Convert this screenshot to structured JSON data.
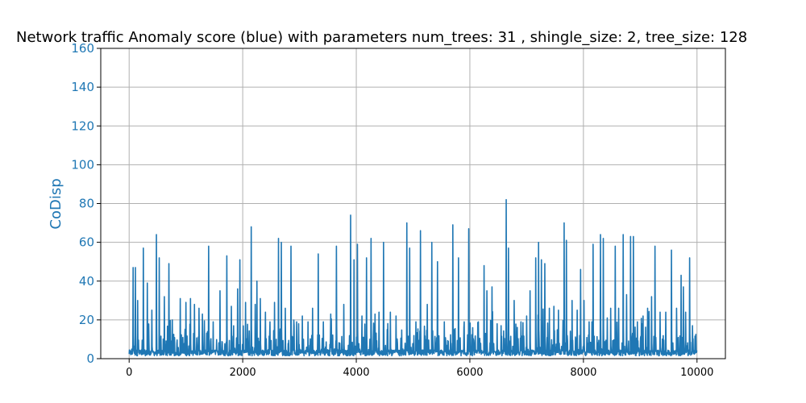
{
  "chart_data": {
    "type": "line",
    "title": "Network traffic Anomaly score (blue) with parameters num_trees: 31 , shingle_size: 2, tree_size: 128",
    "xlabel": "",
    "ylabel": "CoDisp",
    "xlim": [
      -500,
      10500
    ],
    "ylim": [
      0,
      160
    ],
    "x_ticks": [
      0,
      2000,
      4000,
      6000,
      8000,
      10000
    ],
    "x_tick_labels": [
      "0",
      "2000",
      "4000",
      "6000",
      "8000",
      "10000"
    ],
    "y_ticks": [
      0,
      20,
      40,
      60,
      80,
      100,
      120,
      140,
      160
    ],
    "y_tick_labels": [
      "0",
      "20",
      "40",
      "60",
      "80",
      "100",
      "120",
      "140",
      "160"
    ],
    "grid": true,
    "colors": {
      "series": "#1f77b4",
      "ylabel": "#1f77b4",
      "grid": "#b0b0b0"
    },
    "series": [
      {
        "x_start": 0,
        "x_end": 10000,
        "baseline": 3,
        "peaks": [
          [
            70,
            47
          ],
          [
            110,
            47
          ],
          [
            150,
            30
          ],
          [
            250,
            57
          ],
          [
            320,
            39
          ],
          [
            400,
            25
          ],
          [
            480,
            64
          ],
          [
            530,
            52
          ],
          [
            620,
            32
          ],
          [
            700,
            49
          ],
          [
            760,
            20
          ],
          [
            900,
            31
          ],
          [
            1000,
            29
          ],
          [
            1080,
            31
          ],
          [
            1150,
            28
          ],
          [
            1230,
            26
          ],
          [
            1290,
            23
          ],
          [
            1400,
            58
          ],
          [
            1480,
            19
          ],
          [
            1600,
            35
          ],
          [
            1720,
            53
          ],
          [
            1800,
            27
          ],
          [
            1910,
            36
          ],
          [
            1950,
            51
          ],
          [
            2050,
            29
          ],
          [
            2150,
            68
          ],
          [
            2220,
            28
          ],
          [
            2250,
            40
          ],
          [
            2310,
            31
          ],
          [
            2400,
            24
          ],
          [
            2480,
            19
          ],
          [
            2560,
            29
          ],
          [
            2630,
            62
          ],
          [
            2680,
            60
          ],
          [
            2750,
            26
          ],
          [
            2850,
            58
          ],
          [
            2950,
            19
          ],
          [
            3050,
            22
          ],
          [
            3150,
            19
          ],
          [
            3230,
            26
          ],
          [
            3330,
            54
          ],
          [
            3420,
            19
          ],
          [
            3550,
            23
          ],
          [
            3650,
            58
          ],
          [
            3780,
            28
          ],
          [
            3900,
            74
          ],
          [
            3960,
            51
          ],
          [
            4020,
            59
          ],
          [
            4100,
            22
          ],
          [
            4180,
            52
          ],
          [
            4260,
            62
          ],
          [
            4330,
            23
          ],
          [
            4400,
            24
          ],
          [
            4480,
            60
          ],
          [
            4600,
            24
          ],
          [
            4700,
            22
          ],
          [
            4890,
            70
          ],
          [
            4940,
            57
          ],
          [
            5050,
            19
          ],
          [
            5130,
            66
          ],
          [
            5250,
            28
          ],
          [
            5330,
            60
          ],
          [
            5430,
            50
          ],
          [
            5550,
            19
          ],
          [
            5700,
            69
          ],
          [
            5800,
            52
          ],
          [
            5900,
            19
          ],
          [
            5980,
            67
          ],
          [
            6050,
            16
          ],
          [
            6150,
            19
          ],
          [
            6250,
            48
          ],
          [
            6300,
            35
          ],
          [
            6390,
            37
          ],
          [
            6480,
            18
          ],
          [
            6550,
            17
          ],
          [
            6640,
            82
          ],
          [
            6680,
            57
          ],
          [
            6780,
            30
          ],
          [
            6900,
            19
          ],
          [
            7000,
            22
          ],
          [
            7060,
            35
          ],
          [
            7160,
            52
          ],
          [
            7210,
            60
          ],
          [
            7260,
            51
          ],
          [
            7320,
            49
          ],
          [
            7400,
            26
          ],
          [
            7480,
            27
          ],
          [
            7560,
            25
          ],
          [
            7660,
            70
          ],
          [
            7700,
            61
          ],
          [
            7800,
            30
          ],
          [
            7890,
            25
          ],
          [
            7950,
            46
          ],
          [
            8010,
            30
          ],
          [
            8100,
            19
          ],
          [
            8170,
            59
          ],
          [
            8300,
            64
          ],
          [
            8350,
            62
          ],
          [
            8420,
            21
          ],
          [
            8480,
            26
          ],
          [
            8560,
            58
          ],
          [
            8620,
            26
          ],
          [
            8700,
            64
          ],
          [
            8760,
            33
          ],
          [
            8830,
            63
          ],
          [
            8880,
            63
          ],
          [
            8950,
            19
          ],
          [
            9050,
            22
          ],
          [
            9130,
            26
          ],
          [
            9200,
            32
          ],
          [
            9260,
            58
          ],
          [
            9350,
            24
          ],
          [
            9450,
            24
          ],
          [
            9550,
            56
          ],
          [
            9640,
            26
          ],
          [
            9720,
            43
          ],
          [
            9760,
            37
          ],
          [
            9800,
            24
          ],
          [
            9870,
            52
          ],
          [
            9920,
            17
          ]
        ]
      }
    ]
  }
}
